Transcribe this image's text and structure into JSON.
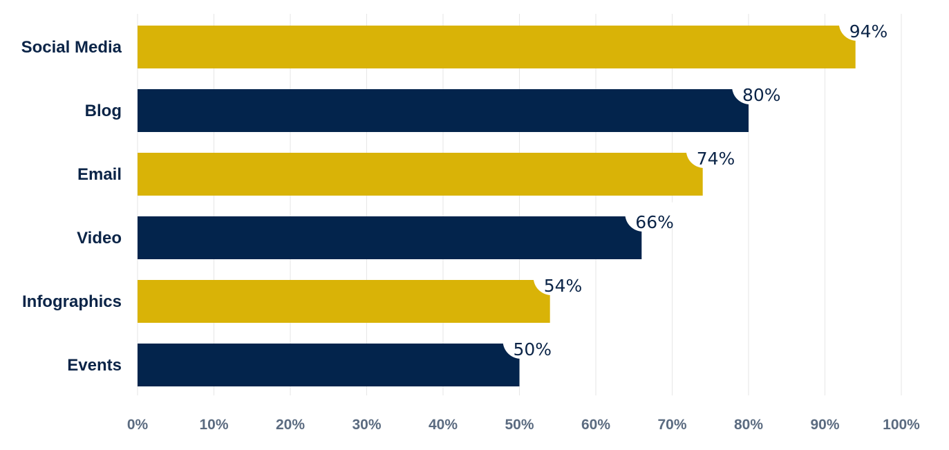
{
  "chart_data": {
    "type": "bar",
    "orientation": "horizontal",
    "categories": [
      "Social Media",
      "Blog",
      "Email",
      "Video",
      "Infographics",
      "Events"
    ],
    "values": [
      94,
      80,
      74,
      66,
      54,
      50
    ],
    "data_labels": [
      "94%",
      "80%",
      "74%",
      "66%",
      "54%",
      "50%"
    ],
    "xlim": [
      0,
      100
    ],
    "x_ticks": [
      "0%",
      "10%",
      "20%",
      "30%",
      "40%",
      "50%",
      "60%",
      "70%",
      "80%",
      "90%",
      "100%"
    ],
    "grid": true,
    "legend": false,
    "colors": [
      "#d9b307",
      "#03244c",
      "#d9b307",
      "#03244c",
      "#d9b307",
      "#03244c"
    ],
    "gridline_color": "#e6e6e6"
  }
}
